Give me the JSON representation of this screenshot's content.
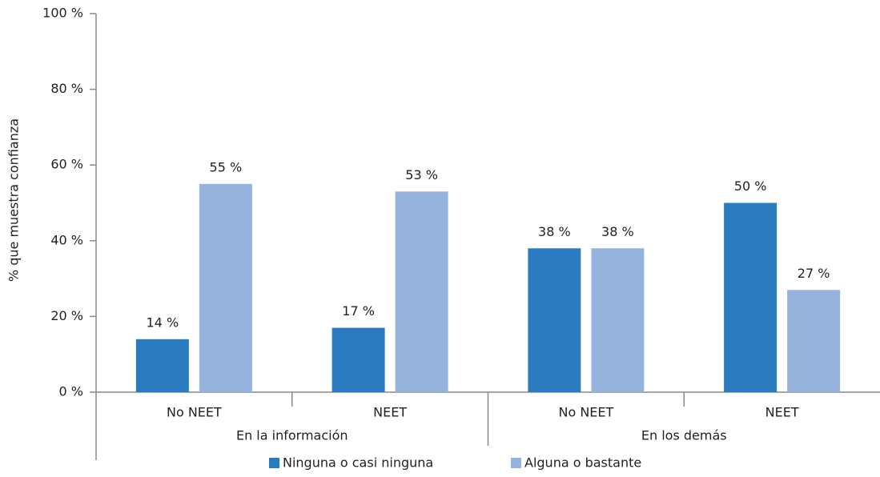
{
  "chart_data": {
    "type": "bar",
    "ylabel": "% que muestra confianza",
    "groups": [
      {
        "name": "En la información",
        "categories": [
          "No NEET",
          "NEET"
        ]
      },
      {
        "name": "En los demás",
        "categories": [
          "No NEET",
          "NEET"
        ]
      }
    ],
    "series": [
      {
        "name": "Ninguna o casi ninguna",
        "color": "#2b7bc0",
        "values": [
          14,
          17,
          38,
          50
        ],
        "value_labels": [
          "14 %",
          "17 %",
          "38 %",
          "50 %"
        ]
      },
      {
        "name": "Alguna o bastante",
        "color": "#95b3dc",
        "values": [
          55,
          53,
          38,
          27
        ],
        "value_labels": [
          "55 %",
          "53 %",
          "38 %",
          "27 %"
        ]
      }
    ],
    "ylim": [
      0,
      100
    ],
    "yticks": [
      {
        "value": 0,
        "label": "0 %"
      },
      {
        "value": 20,
        "label": "20 %"
      },
      {
        "value": 40,
        "label": "40 %"
      },
      {
        "value": 60,
        "label": "60 %"
      },
      {
        "value": 80,
        "label": "80 %"
      },
      {
        "value": 100,
        "label": "100 %"
      }
    ]
  }
}
